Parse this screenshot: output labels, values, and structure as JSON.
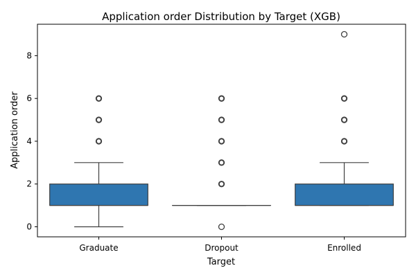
{
  "chart_data": {
    "type": "box",
    "title": "Application order Distribution by Target (XGB)",
    "xlabel": "Target",
    "ylabel": "Application order",
    "categories": [
      "Graduate",
      "Dropout",
      "Enrolled"
    ],
    "y_ticks": [
      0,
      2,
      4,
      6,
      8
    ],
    "ylim": [
      -0.47,
      9.47
    ],
    "grid": false,
    "box_color": "#2f76b0",
    "boxes": [
      {
        "category": "Graduate",
        "q1": 1,
        "median": 1,
        "q3": 2,
        "whisker_low": 0,
        "whisker_high": 3,
        "outliers": [
          4,
          5,
          6
        ]
      },
      {
        "category": "Dropout",
        "q1": 1,
        "median": 1,
        "q3": 1,
        "whisker_low": 1,
        "whisker_high": 1,
        "outliers": [
          0,
          2,
          3,
          4,
          5,
          6
        ]
      },
      {
        "category": "Enrolled",
        "q1": 1,
        "median": 1,
        "q3": 2,
        "whisker_low": 1,
        "whisker_high": 3,
        "outliers": [
          4,
          5,
          6,
          9
        ]
      }
    ]
  }
}
